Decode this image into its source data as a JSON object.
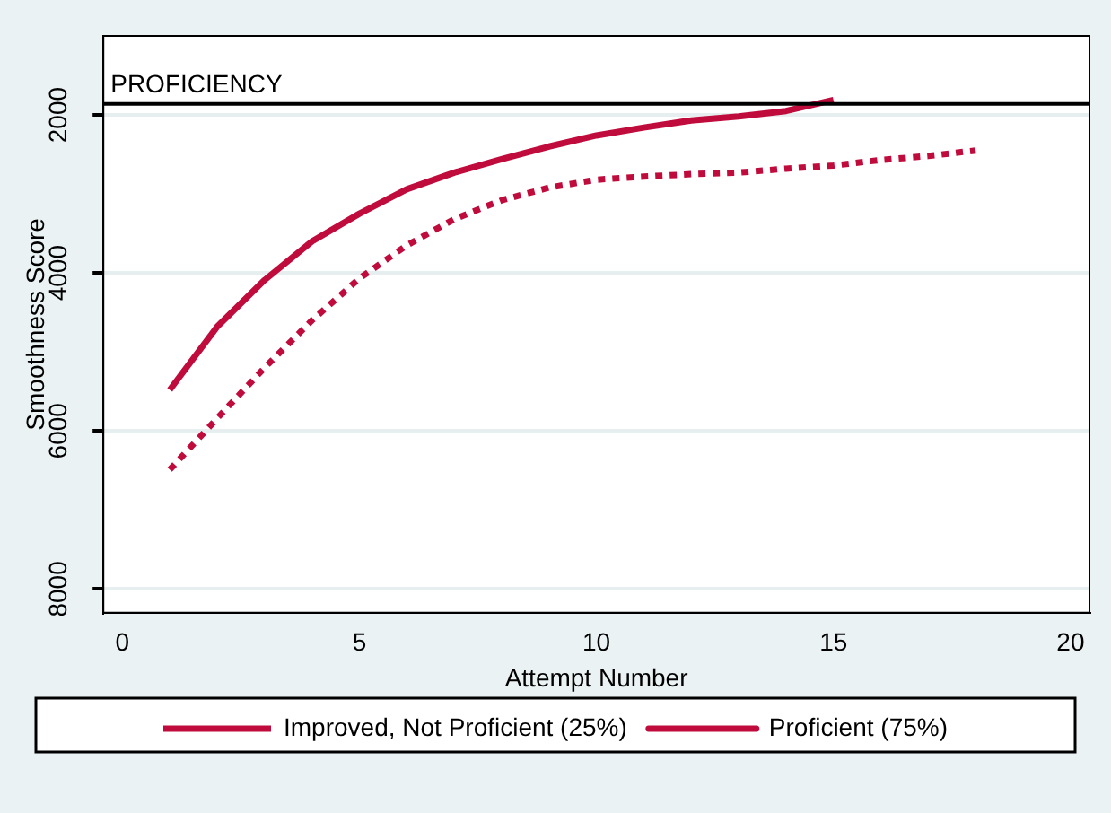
{
  "chart_data": {
    "type": "line",
    "xlabel": "Attempt Number",
    "ylabel": "Smoothness Score",
    "xlim": [
      -0.4,
      20.4
    ],
    "xticks": [
      0,
      5,
      10,
      15,
      20
    ],
    "ylim": [
      8300,
      1000
    ],
    "yticks": [
      2000,
      4000,
      6000,
      8000
    ],
    "grid": "y",
    "legend": "bottom",
    "marker": "none",
    "ref_lines": [
      {
        "axis": "y",
        "value": 1860,
        "label": "PROFICIENCY",
        "color": "#000000"
      }
    ],
    "series": [
      {
        "name": "Improved, Not Proficient (25%)",
        "color": "#c00c3c",
        "line_style": "dotted",
        "x": [
          1,
          2,
          3,
          4,
          5,
          6,
          7,
          8,
          9,
          10,
          11,
          12,
          13,
          14,
          15,
          16,
          17,
          18
        ],
        "values": [
          6490,
          5840,
          5200,
          4600,
          4070,
          3650,
          3320,
          3080,
          2920,
          2820,
          2780,
          2750,
          2730,
          2680,
          2640,
          2570,
          2520,
          2450
        ]
      },
      {
        "name": "Proficient (75%)",
        "color": "#c00c3c",
        "line_style": "solid",
        "x": [
          1,
          2,
          3,
          4,
          5,
          6,
          7,
          8,
          9,
          10,
          11,
          12,
          13,
          14,
          15
        ],
        "values": [
          5480,
          4680,
          4090,
          3600,
          3250,
          2940,
          2730,
          2560,
          2400,
          2260,
          2160,
          2070,
          2020,
          1950,
          1810
        ]
      }
    ]
  }
}
